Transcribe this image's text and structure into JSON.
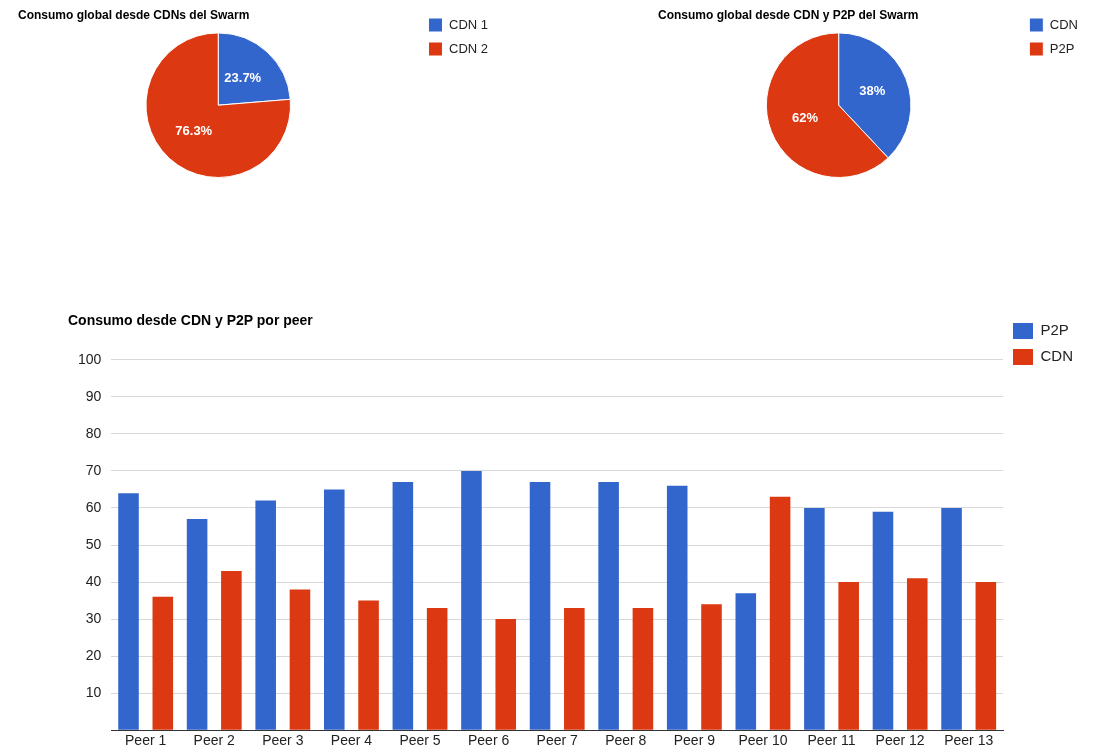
{
  "chart_data": [
    {
      "type": "pie",
      "title": "Consumo global desde CDNs del Swarm",
      "categories": [
        "CDN 1",
        "CDN 2"
      ],
      "values": [
        23.7,
        76.3
      ],
      "colors": [
        "#3366cc",
        "#dc3912"
      ],
      "value_labels": [
        "23.7%",
        "76.3%"
      ],
      "legend": "right"
    },
    {
      "type": "pie",
      "title": "Consumo global desde CDN y P2P del Swarm",
      "categories": [
        "CDN",
        "P2P"
      ],
      "values": [
        38,
        62
      ],
      "colors": [
        "#3366cc",
        "#dc3912"
      ],
      "value_labels": [
        "38%",
        "62%"
      ],
      "legend": "right"
    },
    {
      "type": "bar",
      "title": "Consumo desde CDN y P2P por peer",
      "categories": [
        "Peer 1",
        "Peer 2",
        "Peer 3",
        "Peer 4",
        "Peer 5",
        "Peer 6",
        "Peer 7",
        "Peer 8",
        "Peer 9",
        "Peer 10",
        "Peer 11",
        "Peer 12",
        "Peer 13"
      ],
      "series": [
        {
          "name": "P2P",
          "color": "#3366cc",
          "values": [
            64,
            57,
            62,
            65,
            67,
            70,
            67,
            67,
            66,
            37,
            60,
            59,
            60
          ]
        },
        {
          "name": "CDN",
          "color": "#dc3912",
          "values": [
            36,
            43,
            38,
            35,
            33,
            30,
            33,
            33,
            34,
            63,
            40,
            41,
            40
          ]
        }
      ],
      "ylim": [
        0,
        100
      ],
      "yticks": [
        {
          "value": 0,
          "label": null
        },
        10,
        20,
        30,
        40,
        50,
        60,
        70,
        80,
        90,
        100
      ],
      "grid": "y",
      "legend": "top right"
    }
  ]
}
